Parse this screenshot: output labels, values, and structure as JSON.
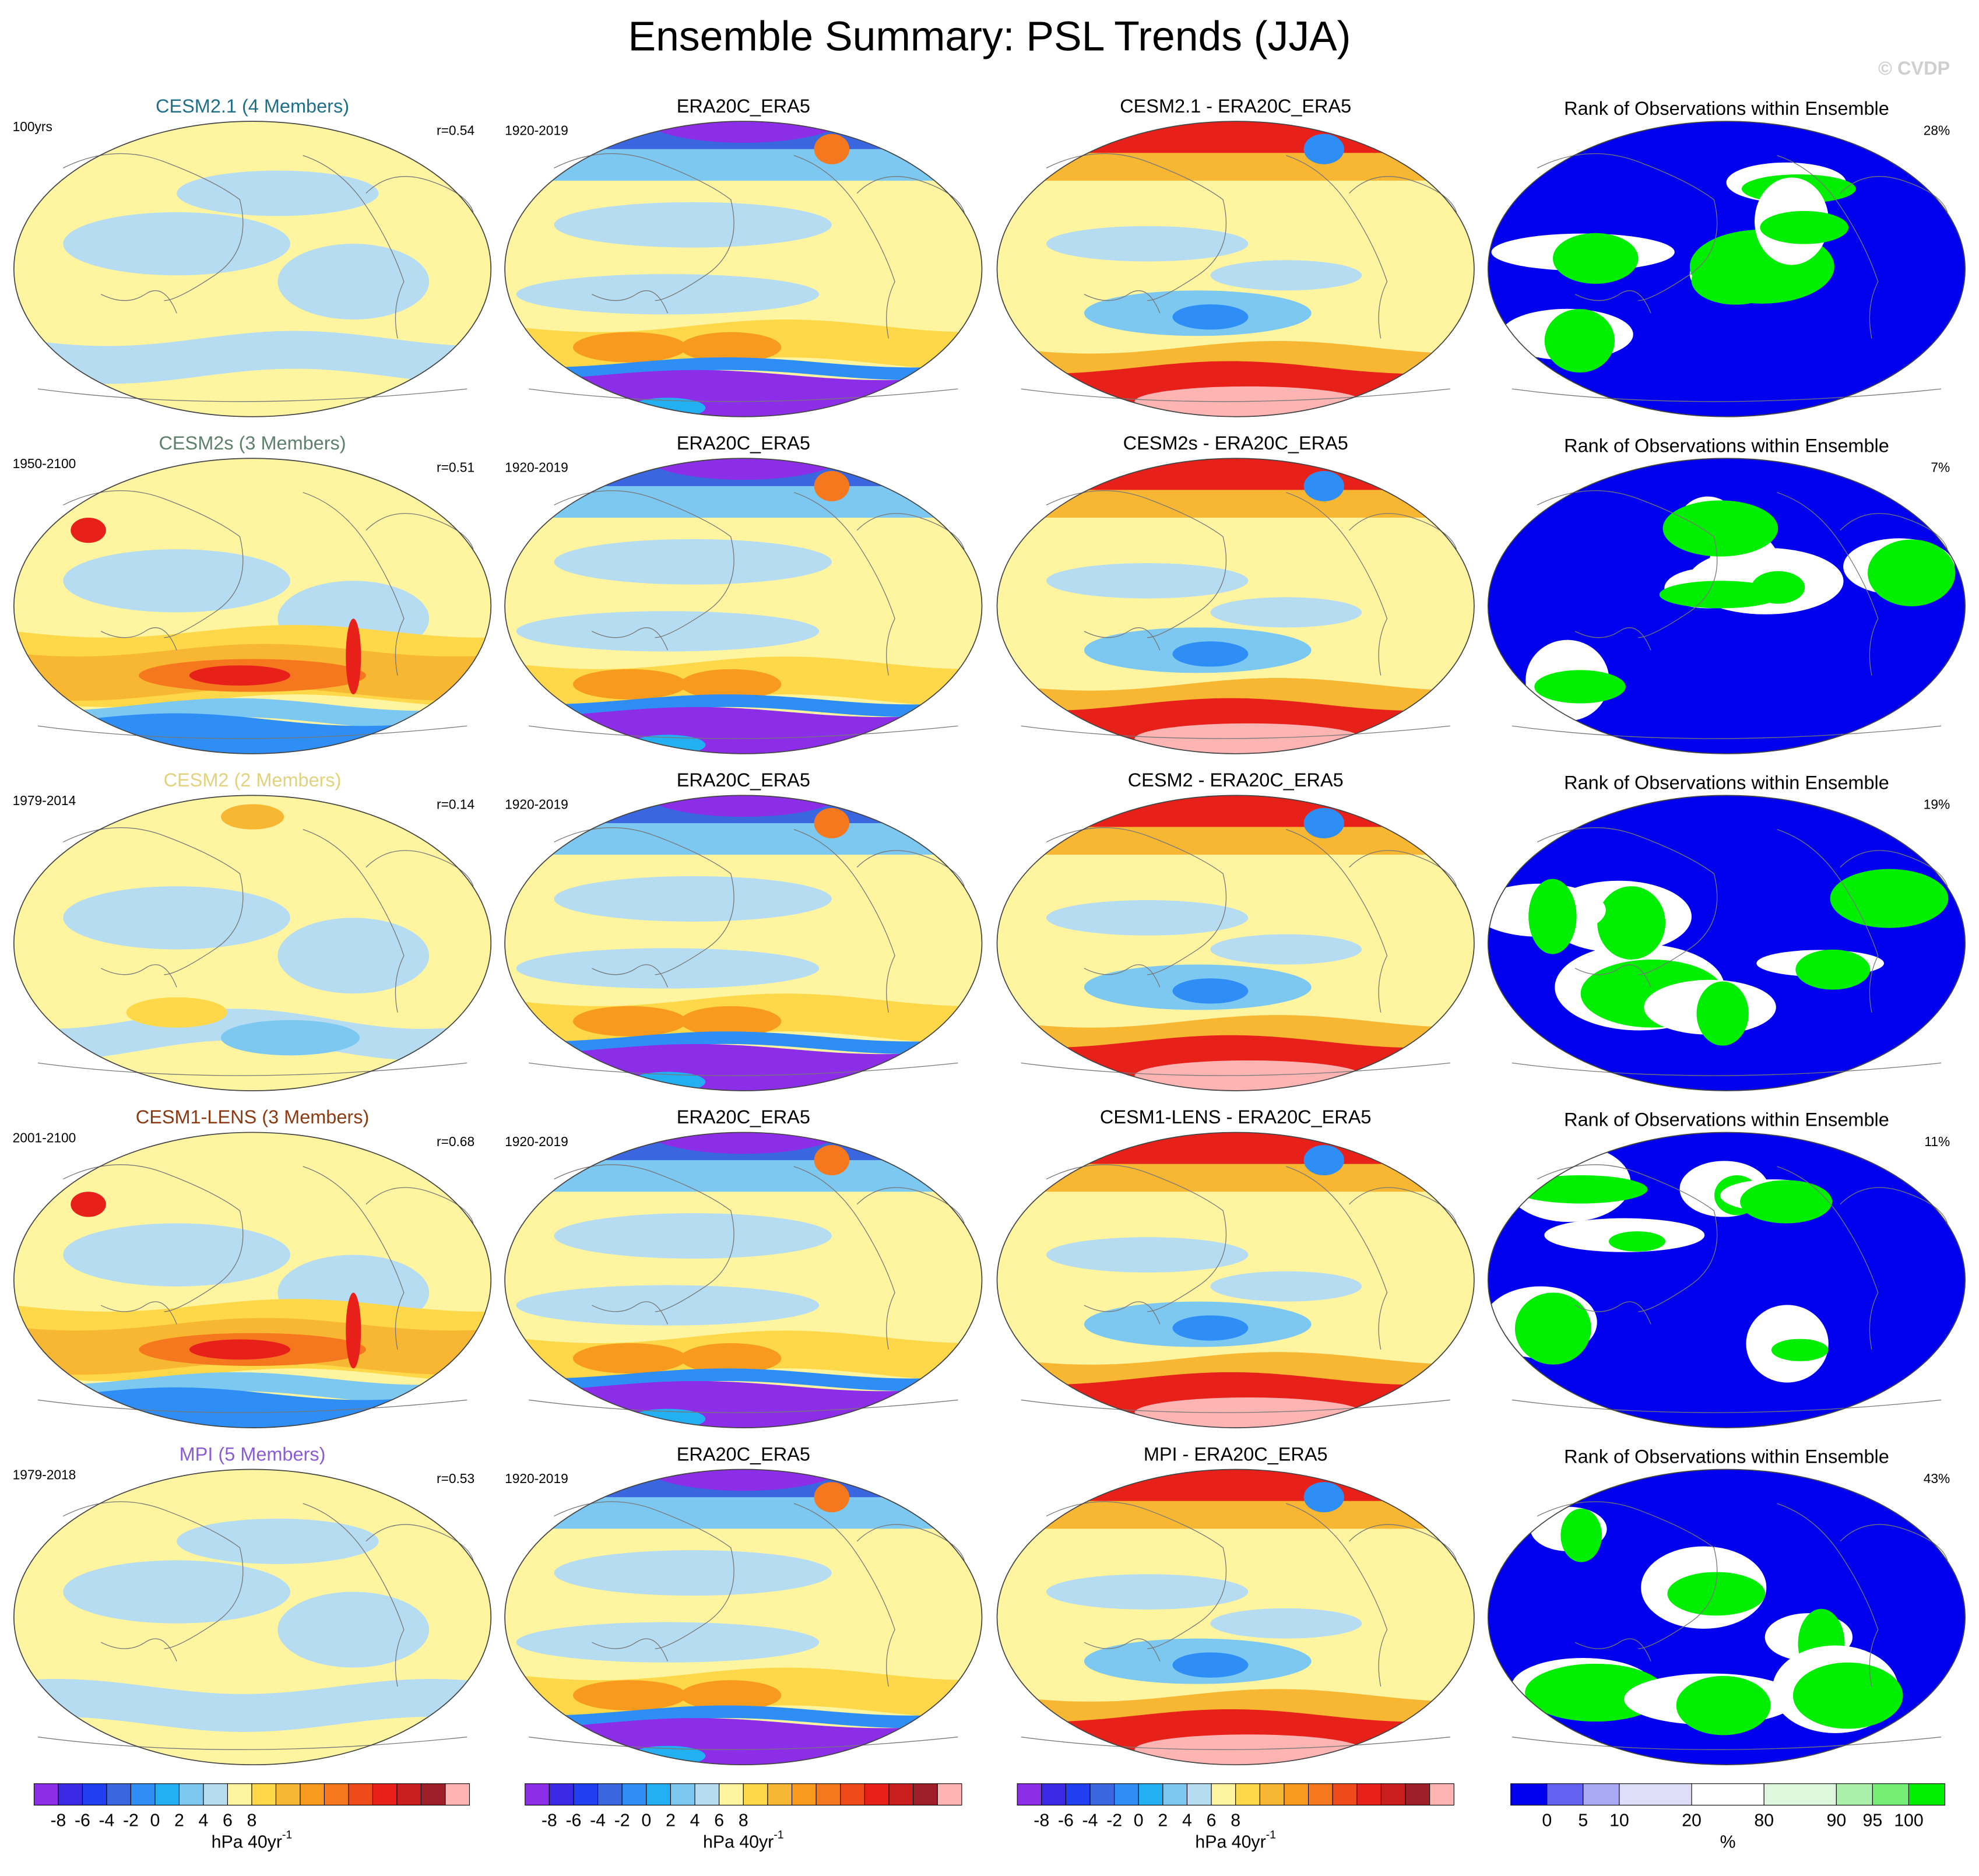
{
  "title": "Ensemble Summary: PSL Trends (JJA)",
  "credit": "© CVDP",
  "rows": [
    {
      "model": "CESM2.1 (4 Members)",
      "model_color": "#1f6f8b",
      "period": "100yrs",
      "r": "r=0.54",
      "obs_title": "ERA20C_ERA5",
      "obs_period": "1920-2019",
      "diff_title": "CESM2.1 - ERA20C_ERA5",
      "rank_title": "Rank of Observations within Ensemble",
      "rank_pct": "28%"
    },
    {
      "model": "CESM2s (3 Members)",
      "model_color": "#5e806c",
      "period": "1950-2100",
      "r": "r=0.51",
      "obs_title": "ERA20C_ERA5",
      "obs_period": "1920-2019",
      "diff_title": "CESM2s - ERA20C_ERA5",
      "rank_title": "Rank of Observations within Ensemble",
      "rank_pct": "7%"
    },
    {
      "model": "CESM2 (2 Members)",
      "model_color": "#e3d27d",
      "period": "1979-2014",
      "r": "r=0.14",
      "obs_title": "ERA20C_ERA5",
      "obs_period": "1920-2019",
      "diff_title": "CESM2 - ERA20C_ERA5",
      "rank_title": "Rank of Observations within Ensemble",
      "rank_pct": "19%"
    },
    {
      "model": "CESM1-LENS (3 Members)",
      "model_color": "#8b3a12",
      "period": "2001-2100",
      "r": "r=0.68",
      "obs_title": "ERA20C_ERA5",
      "obs_period": "1920-2019",
      "diff_title": "CESM1-LENS - ERA20C_ERA5",
      "rank_title": "Rank of Observations within Ensemble",
      "rank_pct": "11%"
    },
    {
      "model": "MPI (5 Members)",
      "model_color": "#8a5cd6",
      "period": "1979-2018",
      "r": "r=0.53",
      "obs_title": "ERA20C_ERA5",
      "obs_period": "1920-2019",
      "diff_title": "MPI - ERA20C_ERA5",
      "rank_title": "Rank of Observations within Ensemble",
      "rank_pct": "43%"
    }
  ],
  "colorbars": [
    {
      "colors": [
        "#8c2de8",
        "#3a2ae6",
        "#1f3ff0",
        "#3a66e0",
        "#2f8ef5",
        "#22b0f2",
        "#7cc8f0",
        "#b5dcf0",
        "#fff5a0",
        "#ffd84a",
        "#f7b733",
        "#f79a1e",
        "#f5781e",
        "#ee4a1a",
        "#e8201a",
        "#c81e1e",
        "#a01e28",
        "#ffb4b4"
      ],
      "ticks": [
        -8,
        -6,
        -4,
        -2,
        0,
        2,
        4,
        6,
        8
      ],
      "unit": "hPa 40yr",
      "unit_exponent": "-1"
    },
    {
      "colors": [
        "#8c2de8",
        "#3a2ae6",
        "#1f3ff0",
        "#3a66e0",
        "#2f8ef5",
        "#22b0f2",
        "#7cc8f0",
        "#b5dcf0",
        "#fff5a0",
        "#ffd84a",
        "#f7b733",
        "#f79a1e",
        "#f5781e",
        "#ee4a1a",
        "#e8201a",
        "#c81e1e",
        "#a01e28",
        "#ffb4b4"
      ],
      "ticks": [
        -8,
        -6,
        -4,
        -2,
        0,
        2,
        4,
        6,
        8
      ],
      "unit": "hPa 40yr",
      "unit_exponent": "-1"
    },
    {
      "colors": [
        "#8c2de8",
        "#3a2ae6",
        "#1f3ff0",
        "#3a66e0",
        "#2f8ef5",
        "#22b0f2",
        "#7cc8f0",
        "#b5dcf0",
        "#fff5a0",
        "#ffd84a",
        "#f7b733",
        "#f79a1e",
        "#f5781e",
        "#ee4a1a",
        "#e8201a",
        "#c81e1e",
        "#a01e28",
        "#ffb4b4"
      ],
      "ticks": [
        -8,
        -6,
        -4,
        -2,
        0,
        2,
        4,
        6,
        8
      ],
      "unit": "hPa 40yr",
      "unit_exponent": "-1"
    },
    {
      "colors": [
        "#0000ee",
        "#6262f0",
        "#aaaaf4",
        "#dedef8",
        "#ffffff",
        "#def8de",
        "#aaf0aa",
        "#74ee74",
        "#00ee00"
      ],
      "ticks": [
        0,
        5,
        10,
        20,
        80,
        90,
        95,
        100
      ],
      "unit": "%"
    }
  ]
}
